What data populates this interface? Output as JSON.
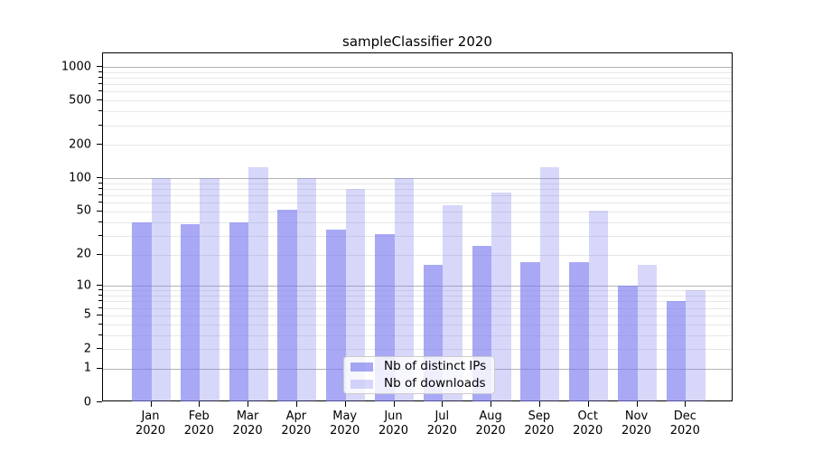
{
  "title": "sampleClassifier 2020",
  "chart_data": {
    "type": "bar",
    "title": "sampleClassifier 2020",
    "xlabel": "",
    "ylabel": "",
    "yscale": "log(value+1)",
    "ylim": [
      0,
      1320
    ],
    "grid": true,
    "legend_position": "lower center",
    "categories": [
      "Jan 2020",
      "Feb 2020",
      "Mar 2020",
      "Apr 2020",
      "May 2020",
      "Jun 2020",
      "Jul 2020",
      "Aug 2020",
      "Sep 2020",
      "Oct 2020",
      "Nov 2020",
      "Dec 2020"
    ],
    "series": [
      {
        "name": "Nb of distinct IPs",
        "values": [
          40,
          38,
          40,
          52,
          34,
          31,
          16,
          24,
          17,
          17,
          10,
          7
        ]
      },
      {
        "name": "Nb of downloads",
        "values": [
          100,
          100,
          126,
          100,
          80,
          100,
          57,
          74,
          125,
          51,
          16,
          9
        ]
      }
    ],
    "yticks": [
      {
        "value": 0,
        "label": "0"
      },
      {
        "value": 1,
        "label": "1"
      },
      {
        "value": 2,
        "label": "2"
      },
      {
        "value": 5,
        "label": "5"
      },
      {
        "value": 10,
        "label": "10"
      },
      {
        "value": 20,
        "label": "20"
      },
      {
        "value": 50,
        "label": "50"
      },
      {
        "value": 100,
        "label": "100"
      },
      {
        "value": 200,
        "label": "200"
      },
      {
        "value": 500,
        "label": "500"
      },
      {
        "value": 1000,
        "label": "1000"
      }
    ],
    "yticks_minor": [
      3,
      4,
      6,
      7,
      8,
      9,
      30,
      40,
      60,
      70,
      80,
      90,
      300,
      400,
      600,
      700,
      800,
      900
    ],
    "major_gridline_values": [
      1,
      10,
      100,
      1000
    ]
  },
  "legend": {
    "items": [
      {
        "label": "Nb of distinct IPs",
        "color": "rgba(122,122,240,0.65)"
      },
      {
        "label": "Nb of downloads",
        "color": "rgba(122,122,240,0.30)"
      }
    ]
  },
  "colors": {
    "bar_base": "#7a7af0",
    "series_fill": [
      "rgba(122,122,240,0.65)",
      "rgba(122,122,240,0.30)"
    ],
    "grid_major": "#b3b3b3",
    "grid_minor": "#e7e7e7",
    "axis": "#000000",
    "background": "#ffffff"
  }
}
